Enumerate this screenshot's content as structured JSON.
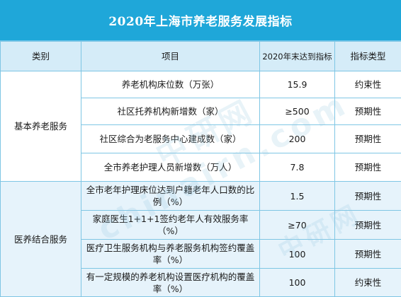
{
  "title": "2020年上海市养老服务发展指标",
  "columns": [
    "类别",
    "项目",
    "2020年末达到指标",
    "指标类型"
  ],
  "rows": [
    {
      "category": "基本养老服务",
      "item": "养老机构床位数（万张）",
      "target": "15.9",
      "type": "约束性"
    },
    {
      "category": "",
      "item": "社区托养机构新增数（家）",
      "target": "≥500",
      "type": "预期性"
    },
    {
      "category": "",
      "item": "社区综合为老服务中心建成数（家）",
      "target": "200",
      "type": "预期性"
    },
    {
      "category": "",
      "item": "全市养老护理人员新增数（万人）",
      "target": "7.8",
      "type": "预期性"
    },
    {
      "category": "医养结合服务",
      "item": "全市老年护理床位达到户籍老年人口数的比例（%）",
      "target": "1.5",
      "type": "预期性"
    },
    {
      "category": "",
      "item": "家庭医生1+1+1签约老年人有效服务率（%）",
      "target": "≥70",
      "type": "预期性"
    },
    {
      "category": "",
      "item": "医疗卫生服务机构与养老服务机构签约覆盖率（%）",
      "target": "100",
      "type": "预期性"
    },
    {
      "category": "",
      "item": "有一定规模的养老机构设置医疗机构的覆盖率（%）",
      "target": "100",
      "type": "约束性"
    }
  ],
  "watermark": "中研网 chinairn.com",
  "watermark_2": "中研网",
  "colors": {
    "header_bar": "#1fa7d9",
    "column_header_bg": "#d5ecf8",
    "alt_row_bg": "#e6f3fb",
    "border": "#7fc6e4"
  }
}
